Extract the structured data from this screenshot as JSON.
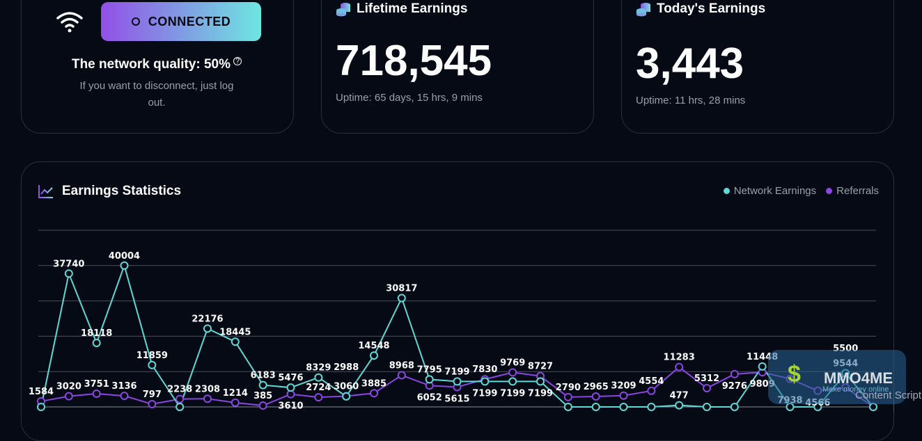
{
  "status": {
    "connected_label": "CONNECTED",
    "quality_label": "The network quality: 50%",
    "help_icon": "?",
    "hint": "If you want to disconnect, just log out."
  },
  "lifetime": {
    "title": "Lifetime Earnings",
    "value": "718,545",
    "uptime": "Uptime: 65 days, 15 hrs, 9 mins"
  },
  "today": {
    "title": "Today's Earnings",
    "value": "3,443",
    "uptime": "Uptime: 11 hrs, 28 mins"
  },
  "stats": {
    "title": "Earnings Statistics",
    "legend": [
      "Network Earnings",
      "Referrals"
    ]
  },
  "colors": {
    "network": "#5dd9d6",
    "referrals": "#8a46e0",
    "bg": "#050a14"
  },
  "watermark": {
    "name": "MMO4ME",
    "slogan": "Make money online",
    "overlay_text": "Content Script"
  },
  "chart_data": {
    "type": "line",
    "ylim": [
      0,
      50000
    ],
    "grid": true,
    "legend": "top-right",
    "series": [
      {
        "name": "Network Earnings",
        "values": [
          0,
          37740,
          18118,
          40004,
          11859,
          0,
          22176,
          18445,
          6183,
          5476,
          8329,
          2988,
          14548,
          30817,
          7795,
          7199,
          7199,
          7199,
          7199,
          0,
          0,
          0,
          0,
          477,
          0,
          0,
          11448,
          0,
          0,
          9544,
          0
        ]
      },
      {
        "name": "Referrals",
        "values": [
          1584,
          3020,
          3751,
          3136,
          797,
          2238,
          2308,
          1214,
          385,
          3610,
          2724,
          3060,
          3885,
          8968,
          6052,
          5615,
          7830,
          9769,
          8727,
          2790,
          2965,
          3209,
          4554,
          11283,
          5312,
          9276,
          9809,
          7938,
          4566,
          5500,
          0
        ]
      }
    ]
  }
}
